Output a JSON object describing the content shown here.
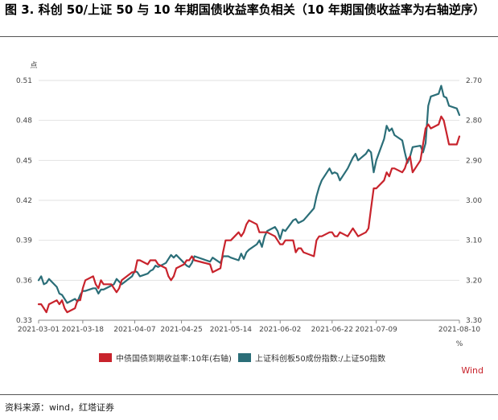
{
  "title": "图 3. 科创 50/上证 50 与 10 年期国债收益率负相关（10 年期国债收益率为右轴逆序）",
  "source": "资料来源：wind，红塔证券",
  "chart_data": {
    "type": "line",
    "left_unit": "点",
    "right_unit": "%",
    "watermark": "Wind",
    "y_left": {
      "min": 0.33,
      "max": 0.51,
      "ticks": [
        "0.33",
        "0.36",
        "0.39",
        "0.42",
        "0.45",
        "0.48",
        "0.51"
      ]
    },
    "y_right": {
      "min": 2.7,
      "max": 3.3,
      "inverted": true,
      "ticks": [
        "2.70",
        "2.80",
        "2.90",
        "3.00",
        "3.10",
        "3.20",
        "3.30"
      ]
    },
    "x_range": [
      "2021-03-01",
      "2021-08-10"
    ],
    "x_ticks": [
      "2021-03-01",
      "2021-03-18",
      "2021-04-07",
      "2021-04-25",
      "2021-05-14",
      "2021-06-02",
      "2021-06-22",
      "2021-07-09",
      "2021-08-10"
    ],
    "colors": {
      "bond": "#c8232c",
      "ratio": "#2b6e78"
    },
    "series": [
      {
        "name": "中债国债到期收益率:10年(右轴)",
        "axis": "right",
        "x": [
          "2021-03-01",
          "2021-03-02",
          "2021-03-03",
          "2021-03-04",
          "2021-03-05",
          "2021-03-08",
          "2021-03-09",
          "2021-03-10",
          "2021-03-11",
          "2021-03-12",
          "2021-03-15",
          "2021-03-16",
          "2021-03-17",
          "2021-03-18",
          "2021-03-19",
          "2021-03-22",
          "2021-03-23",
          "2021-03-24",
          "2021-03-25",
          "2021-03-26",
          "2021-03-29",
          "2021-03-30",
          "2021-03-31",
          "2021-04-01",
          "2021-04-02",
          "2021-04-06",
          "2021-04-07",
          "2021-04-08",
          "2021-04-09",
          "2021-04-12",
          "2021-04-13",
          "2021-04-14",
          "2021-04-15",
          "2021-04-16",
          "2021-04-19",
          "2021-04-20",
          "2021-04-21",
          "2021-04-22",
          "2021-04-23",
          "2021-04-26",
          "2021-04-27",
          "2021-04-28",
          "2021-04-29",
          "2021-04-30",
          "2021-05-06",
          "2021-05-07",
          "2021-05-10",
          "2021-05-11",
          "2021-05-12",
          "2021-05-13",
          "2021-05-14",
          "2021-05-17",
          "2021-05-18",
          "2021-05-19",
          "2021-05-20",
          "2021-05-21",
          "2021-05-24",
          "2021-05-25",
          "2021-05-26",
          "2021-05-27",
          "2021-05-28",
          "2021-05-31",
          "2021-06-01",
          "2021-06-02",
          "2021-06-03",
          "2021-06-04",
          "2021-06-07",
          "2021-06-08",
          "2021-06-09",
          "2021-06-10",
          "2021-06-11",
          "2021-06-15",
          "2021-06-16",
          "2021-06-17",
          "2021-06-18",
          "2021-06-21",
          "2021-06-22",
          "2021-06-23",
          "2021-06-24",
          "2021-06-25",
          "2021-06-28",
          "2021-06-29",
          "2021-06-30",
          "2021-07-01",
          "2021-07-02",
          "2021-07-05",
          "2021-07-06",
          "2021-07-07",
          "2021-07-08",
          "2021-07-09",
          "2021-07-12",
          "2021-07-13",
          "2021-07-14",
          "2021-07-15",
          "2021-07-16",
          "2021-07-19",
          "2021-07-20",
          "2021-07-21",
          "2021-07-22",
          "2021-07-23",
          "2021-07-26",
          "2021-07-27",
          "2021-07-28",
          "2021-07-29",
          "2021-07-30",
          "2021-08-02",
          "2021-08-03",
          "2021-08-04",
          "2021-08-05",
          "2021-08-06",
          "2021-08-09",
          "2021-08-10"
        ],
        "y": [
          3.26,
          3.26,
          3.27,
          3.28,
          3.26,
          3.25,
          3.26,
          3.25,
          3.27,
          3.28,
          3.27,
          3.25,
          3.25,
          3.22,
          3.2,
          3.19,
          3.21,
          3.22,
          3.2,
          3.21,
          3.21,
          3.22,
          3.23,
          3.22,
          3.2,
          3.18,
          3.18,
          3.15,
          3.15,
          3.16,
          3.15,
          3.15,
          3.15,
          3.16,
          3.17,
          3.19,
          3.2,
          3.19,
          3.17,
          3.16,
          3.15,
          3.15,
          3.14,
          3.15,
          3.16,
          3.18,
          3.17,
          3.13,
          3.1,
          3.1,
          3.1,
          3.08,
          3.09,
          3.08,
          3.06,
          3.05,
          3.06,
          3.08,
          3.08,
          3.08,
          3.08,
          3.09,
          3.1,
          3.11,
          3.11,
          3.1,
          3.1,
          3.13,
          3.12,
          3.12,
          3.13,
          3.14,
          3.1,
          3.09,
          3.09,
          3.08,
          3.08,
          3.09,
          3.09,
          3.08,
          3.09,
          3.08,
          3.07,
          3.08,
          3.09,
          3.08,
          3.07,
          3.02,
          2.97,
          2.97,
          2.95,
          2.93,
          2.94,
          2.92,
          2.92,
          2.93,
          2.92,
          2.9,
          2.89,
          2.93,
          2.9,
          2.86,
          2.82,
          2.81,
          2.82,
          2.81,
          2.79,
          2.8,
          2.83,
          2.86,
          2.86,
          2.84
        ]
      },
      {
        "name": "上证科创板50成份指数:/上证50指数",
        "axis": "left",
        "x": [
          "2021-03-01",
          "2021-03-02",
          "2021-03-03",
          "2021-03-04",
          "2021-03-05",
          "2021-03-08",
          "2021-03-09",
          "2021-03-10",
          "2021-03-11",
          "2021-03-12",
          "2021-03-15",
          "2021-03-16",
          "2021-03-17",
          "2021-03-18",
          "2021-03-19",
          "2021-03-22",
          "2021-03-23",
          "2021-03-24",
          "2021-03-25",
          "2021-03-26",
          "2021-03-29",
          "2021-03-30",
          "2021-03-31",
          "2021-04-01",
          "2021-04-02",
          "2021-04-06",
          "2021-04-07",
          "2021-04-08",
          "2021-04-09",
          "2021-04-12",
          "2021-04-13",
          "2021-04-14",
          "2021-04-15",
          "2021-04-16",
          "2021-04-19",
          "2021-04-20",
          "2021-04-21",
          "2021-04-22",
          "2021-04-23",
          "2021-04-26",
          "2021-04-27",
          "2021-04-28",
          "2021-04-29",
          "2021-04-30",
          "2021-05-06",
          "2021-05-07",
          "2021-05-10",
          "2021-05-11",
          "2021-05-12",
          "2021-05-13",
          "2021-05-14",
          "2021-05-17",
          "2021-05-18",
          "2021-05-19",
          "2021-05-20",
          "2021-05-21",
          "2021-05-24",
          "2021-05-25",
          "2021-05-26",
          "2021-05-27",
          "2021-05-28",
          "2021-05-31",
          "2021-06-01",
          "2021-06-02",
          "2021-06-03",
          "2021-06-04",
          "2021-06-07",
          "2021-06-08",
          "2021-06-09",
          "2021-06-10",
          "2021-06-11",
          "2021-06-15",
          "2021-06-16",
          "2021-06-17",
          "2021-06-18",
          "2021-06-21",
          "2021-06-22",
          "2021-06-23",
          "2021-06-24",
          "2021-06-25",
          "2021-06-28",
          "2021-06-29",
          "2021-06-30",
          "2021-07-01",
          "2021-07-02",
          "2021-07-05",
          "2021-07-06",
          "2021-07-07",
          "2021-07-08",
          "2021-07-09",
          "2021-07-12",
          "2021-07-13",
          "2021-07-14",
          "2021-07-15",
          "2021-07-16",
          "2021-07-19",
          "2021-07-20",
          "2021-07-21",
          "2021-07-22",
          "2021-07-23",
          "2021-07-26",
          "2021-07-27",
          "2021-07-28",
          "2021-07-29",
          "2021-07-30",
          "2021-08-02",
          "2021-08-03",
          "2021-08-04",
          "2021-08-05",
          "2021-08-06",
          "2021-08-09",
          "2021-08-10"
        ],
        "y": [
          0.36,
          0.363,
          0.357,
          0.358,
          0.361,
          0.355,
          0.35,
          0.349,
          0.346,
          0.343,
          0.346,
          0.344,
          0.349,
          0.352,
          0.352,
          0.354,
          0.354,
          0.35,
          0.353,
          0.353,
          0.356,
          0.357,
          0.361,
          0.359,
          0.357,
          0.363,
          0.367,
          0.366,
          0.363,
          0.365,
          0.367,
          0.368,
          0.371,
          0.37,
          0.373,
          0.376,
          0.379,
          0.377,
          0.379,
          0.373,
          0.371,
          0.37,
          0.373,
          0.378,
          0.374,
          0.377,
          0.373,
          0.378,
          0.378,
          0.378,
          0.377,
          0.375,
          0.38,
          0.376,
          0.381,
          0.383,
          0.387,
          0.39,
          0.385,
          0.393,
          0.397,
          0.4,
          0.397,
          0.391,
          0.398,
          0.397,
          0.405,
          0.406,
          0.403,
          0.404,
          0.405,
          0.414,
          0.423,
          0.43,
          0.435,
          0.444,
          0.44,
          0.441,
          0.44,
          0.435,
          0.444,
          0.448,
          0.452,
          0.455,
          0.45,
          0.455,
          0.458,
          0.456,
          0.441,
          0.45,
          0.466,
          0.476,
          0.472,
          0.474,
          0.469,
          0.465,
          0.456,
          0.448,
          0.453,
          0.46,
          0.461,
          0.456,
          0.463,
          0.491,
          0.498,
          0.5,
          0.506,
          0.498,
          0.497,
          0.491,
          0.489,
          0.484
        ]
      }
    ]
  }
}
